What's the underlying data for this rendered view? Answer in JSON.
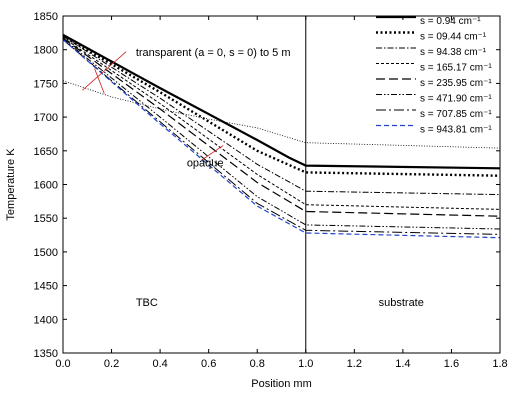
{
  "chart_data": {
    "type": "line",
    "xlabel": "Position mm",
    "ylabel": "Temperature K",
    "xlim": [
      0.0,
      1.8
    ],
    "ylim": [
      1350,
      1850
    ],
    "xticks": [
      0.0,
      0.2,
      0.4,
      0.6,
      0.8,
      1.0,
      1.2,
      1.4,
      1.6,
      1.8
    ],
    "yticks": [
      1350,
      1400,
      1450,
      1500,
      1550,
      1600,
      1650,
      1700,
      1750,
      1800,
      1850
    ],
    "xtick_labels": [
      "0.0",
      "0.2",
      "0.4",
      "0.6",
      "0.8",
      "1.0",
      "1.2",
      "1.4",
      "1.6",
      "1.8"
    ],
    "ytick_labels": [
      "1350",
      "1400",
      "1450",
      "1500",
      "1550",
      "1600",
      "1650",
      "1700",
      "1750",
      "1800",
      "1850"
    ],
    "grid": false,
    "legend_position": "top-right",
    "interface_x": 1.0,
    "annotations": [
      {
        "text": "transparent (a = 0,   s = 0) to 5  m",
        "x": 0.3,
        "y": 1791
      },
      {
        "text": "opaque",
        "x": 0.51,
        "y": 1627
      },
      {
        "text": "TBC",
        "x": 0.3,
        "y": 1420
      },
      {
        "text": "substrate",
        "x": 1.3,
        "y": 1420
      }
    ],
    "series": [
      {
        "name": "s = 0.94 cm⁻¹",
        "style": "thick",
        "color": "#000000",
        "x": [
          0.0,
          0.4,
          0.8,
          0.93,
          1.0,
          1.0,
          1.8
        ],
        "y": [
          1822,
          1743,
          1666,
          1640,
          1628,
          1628,
          1624
        ]
      },
      {
        "name": "s = 09.44 cm⁻¹",
        "style": "dots",
        "color": "#000000",
        "x": [
          0.0,
          0.4,
          0.8,
          1.0,
          1.0,
          1.8
        ],
        "y": [
          1820,
          1737,
          1650,
          1618,
          1618,
          1613
        ]
      },
      {
        "name": "s = 94.38 cm⁻¹",
        "style": "dashdot",
        "color": "#000000",
        "x": [
          0.0,
          0.4,
          0.8,
          1.0,
          1.0,
          1.8
        ],
        "y": [
          1820,
          1728,
          1630,
          1590,
          1590,
          1585
        ]
      },
      {
        "name": "s = 165.17 cm⁻¹",
        "style": "shortdash",
        "color": "#000000",
        "x": [
          0.0,
          0.4,
          0.8,
          1.0,
          1.0,
          1.8
        ],
        "y": [
          1818,
          1720,
          1615,
          1570,
          1570,
          1563
        ]
      },
      {
        "name": "s = 235.95 cm⁻¹",
        "style": "longdash",
        "color": "#000000",
        "x": [
          0.0,
          0.4,
          0.8,
          1.0,
          1.0,
          1.8
        ],
        "y": [
          1817,
          1712,
          1603,
          1560,
          1560,
          1553
        ]
      },
      {
        "name": "s = 471.90 cm⁻¹",
        "style": "dashdotdot",
        "color": "#000000",
        "x": [
          0.0,
          0.4,
          0.8,
          1.0,
          1.0,
          1.8
        ],
        "y": [
          1816,
          1700,
          1582,
          1540,
          1540,
          1534
        ]
      },
      {
        "name": "s = 707.85 cm⁻¹",
        "style": "dashdot2",
        "color": "#000000",
        "x": [
          0.0,
          0.4,
          0.8,
          1.0,
          1.0,
          1.8
        ],
        "y": [
          1815,
          1693,
          1572,
          1532,
          1532,
          1526
        ]
      },
      {
        "name": "s = 943.81 cm⁻¹",
        "style": "bluedash",
        "color": "#2244cc",
        "x": [
          0.0,
          0.4,
          0.8,
          1.0,
          1.0,
          1.8
        ],
        "y": [
          1815,
          1690,
          1568,
          1528,
          1528,
          1521
        ]
      },
      {
        "name": "",
        "style": "finedots",
        "color": "#000000",
        "x": [
          0.0,
          0.2,
          0.4,
          0.6,
          0.8,
          1.0,
          1.0,
          1.8
        ],
        "y": [
          1754,
          1730,
          1712,
          1697,
          1684,
          1662,
          1662,
          1654
        ]
      }
    ]
  }
}
